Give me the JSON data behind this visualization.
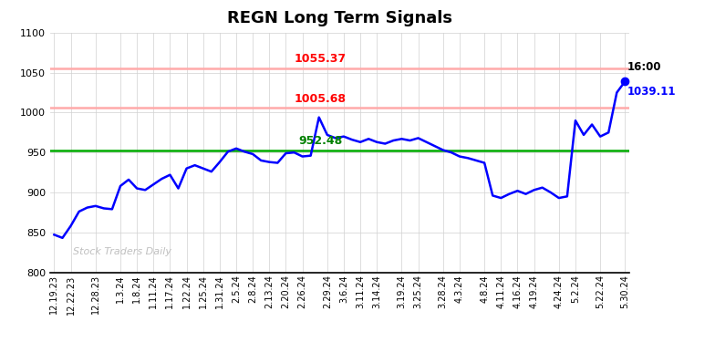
{
  "title": "REGN Long Term Signals",
  "line_color": "#0000ff",
  "line_width": 1.8,
  "marker_color": "#0000ff",
  "hline_green": 952.48,
  "hline_red1": 1005.68,
  "hline_red2": 1055.37,
  "annotation_green": "952.48",
  "annotation_red1": "1005.68",
  "annotation_red2": "1055.37",
  "annotation_last_price": "1039.11",
  "annotation_last_time": "16:00",
  "watermark": "Stock Traders Daily",
  "ylim": [
    800,
    1100
  ],
  "yticks": [
    800,
    850,
    900,
    950,
    1000,
    1050,
    1100
  ],
  "x_labels": [
    "12.19.23",
    "12.22.23",
    "12.28.23",
    "1.3.24",
    "1.8.24",
    "1.11.24",
    "1.17.24",
    "1.22.24",
    "1.25.24",
    "1.31.24",
    "2.5.24",
    "2.8.24",
    "2.13.24",
    "2.20.24",
    "2.26.24",
    "2.29.24",
    "3.6.24",
    "3.11.24",
    "3.14.24",
    "3.19.24",
    "3.25.24",
    "3.28.24",
    "4.3.24",
    "4.8.24",
    "4.11.24",
    "4.16.24",
    "4.19.24",
    "4.24.24",
    "5.2.24",
    "5.22.24",
    "5.30.24"
  ],
  "y_values": [
    847,
    843,
    858,
    876,
    881,
    883,
    880,
    879,
    908,
    916,
    905,
    903,
    910,
    917,
    922,
    905,
    930,
    934,
    930,
    926,
    938,
    951,
    955,
    951,
    948,
    940,
    938,
    937,
    949,
    950,
    945,
    946,
    994,
    972,
    968,
    970,
    966,
    963,
    967,
    963,
    961,
    965,
    967,
    965,
    968,
    963,
    958,
    953,
    950,
    945,
    943,
    940,
    937,
    896,
    893,
    898,
    902,
    898,
    903,
    906,
    900,
    893,
    895,
    990,
    972,
    985,
    970,
    975,
    1025,
    1039
  ],
  "x_tick_positions": [
    0,
    2,
    5,
    8,
    10,
    12,
    14,
    16,
    18,
    20,
    22,
    24,
    26,
    28,
    30,
    33,
    35,
    37,
    39,
    42,
    44,
    47,
    49,
    52,
    54,
    56,
    58,
    61,
    63,
    66,
    69
  ],
  "background_color": "#ffffff",
  "grid_color": "#d0d0d0",
  "hline_red_color": "#ffaaaa",
  "hline_green_color": "#00aa00"
}
